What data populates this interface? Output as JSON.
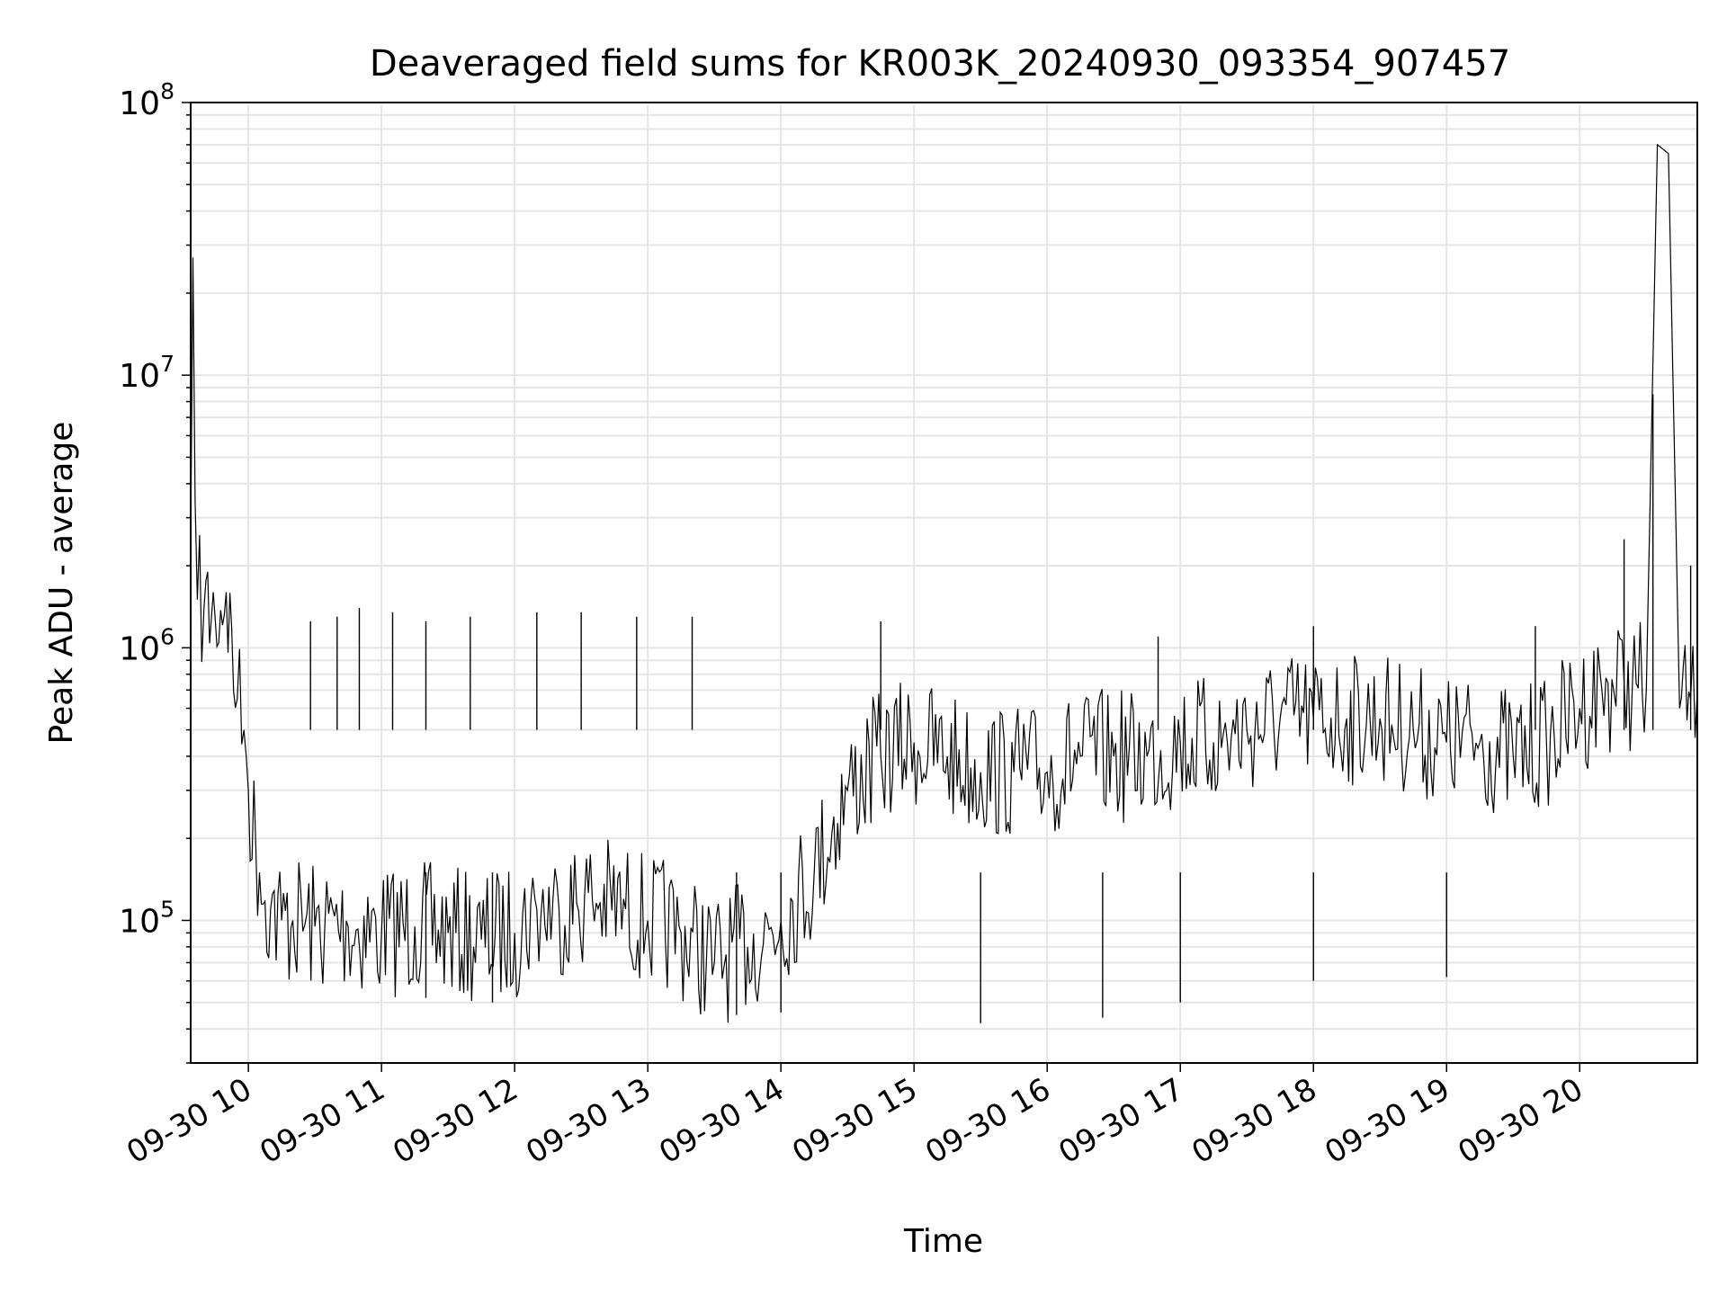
{
  "chart_data": {
    "type": "line",
    "title": "Deaveraged field sums for KR003K_20240930_093354_907457",
    "xlabel": "Time",
    "ylabel": "Peak ADU - average",
    "yscale": "log",
    "ylim": [
      30000,
      100000000
    ],
    "xlim": [
      "2024-09-30 09:34",
      "2024-09-30 20:53"
    ],
    "grid": true,
    "legend": "none",
    "line_color": "#000000",
    "grid_color": "#e5e5e5",
    "x_ticks": [
      {
        "t": "2024-09-30 10:00",
        "label": "09-30 10"
      },
      {
        "t": "2024-09-30 11:00",
        "label": "09-30 11"
      },
      {
        "t": "2024-09-30 12:00",
        "label": "09-30 12"
      },
      {
        "t": "2024-09-30 13:00",
        "label": "09-30 13"
      },
      {
        "t": "2024-09-30 14:00",
        "label": "09-30 14"
      },
      {
        "t": "2024-09-30 15:00",
        "label": "09-30 15"
      },
      {
        "t": "2024-09-30 16:00",
        "label": "09-30 16"
      },
      {
        "t": "2024-09-30 17:00",
        "label": "09-30 17"
      },
      {
        "t": "2024-09-30 18:00",
        "label": "09-30 18"
      },
      {
        "t": "2024-09-30 19:00",
        "label": "09-30 19"
      },
      {
        "t": "2024-09-30 20:00",
        "label": "09-30 20"
      }
    ],
    "y_ticks": [
      {
        "value": 100000,
        "base": "10",
        "exp": "5"
      },
      {
        "value": 1000000,
        "base": "10",
        "exp": "6"
      },
      {
        "value": 10000000,
        "base": "10",
        "exp": "7"
      },
      {
        "value": 100000000,
        "base": "10",
        "exp": "8"
      }
    ],
    "series": [
      {
        "x": [
          "2024-09-30 09:34",
          "2024-09-30 09:35",
          "2024-09-30 09:36",
          "2024-09-30 09:37",
          "2024-09-30 09:40",
          "2024-09-30 09:45",
          "2024-09-30 09:50",
          "2024-09-30 09:55",
          "2024-09-30 09:58",
          "2024-09-30 10:00",
          "2024-09-30 10:05",
          "2024-09-30 10:10",
          "2024-09-30 10:15",
          "2024-09-30 10:20",
          "2024-09-30 10:30",
          "2024-09-30 10:45",
          "2024-09-30 11:00",
          "2024-09-30 11:15",
          "2024-09-30 11:30",
          "2024-09-30 11:45",
          "2024-09-30 12:00",
          "2024-09-30 12:10",
          "2024-09-30 12:20",
          "2024-09-30 12:35",
          "2024-09-30 12:50",
          "2024-09-30 13:00",
          "2024-09-30 13:15",
          "2024-09-30 13:30",
          "2024-09-30 13:45",
          "2024-09-30 14:00",
          "2024-09-30 14:15",
          "2024-09-30 14:30",
          "2024-09-30 14:45",
          "2024-09-30 15:00",
          "2024-09-30 15:15",
          "2024-09-30 15:30",
          "2024-09-30 15:45",
          "2024-09-30 16:00",
          "2024-09-30 16:15",
          "2024-09-30 16:30",
          "2024-09-30 16:45",
          "2024-09-30 17:00",
          "2024-09-30 17:15",
          "2024-09-30 17:30",
          "2024-09-30 17:45",
          "2024-09-30 18:00",
          "2024-09-30 18:15",
          "2024-09-30 18:30",
          "2024-09-30 18:45",
          "2024-09-30 19:00",
          "2024-09-30 19:15",
          "2024-09-30 19:30",
          "2024-09-30 19:45",
          "2024-09-30 20:00",
          "2024-09-30 20:10",
          "2024-09-30 20:20",
          "2024-09-30 20:30",
          "2024-09-30 20:35",
          "2024-09-30 20:40",
          "2024-09-30 20:45",
          "2024-09-30 20:50",
          "2024-09-30 20:53"
        ],
        "y": [
          2500000,
          27000000,
          3500000,
          1500000,
          1400000,
          1300000,
          1600000,
          650000,
          500000,
          300000,
          150000,
          110000,
          100000,
          100000,
          95000,
          95000,
          90000,
          95000,
          90000,
          85000,
          90000,
          110000,
          110000,
          120000,
          110000,
          100000,
          90000,
          70000,
          80000,
          100000,
          150000,
          300000,
          400000,
          450000,
          400000,
          350000,
          350000,
          350000,
          400000,
          400000,
          400000,
          450000,
          450000,
          500000,
          550000,
          550000,
          550000,
          550000,
          500000,
          450000,
          450000,
          400000,
          450000,
          600000,
          700000,
          750000,
          700000,
          70000000,
          65000000,
          600000,
          650000,
          700000
        ]
      }
    ],
    "spikes": [
      {
        "t": "2024-09-30 10:28",
        "y": 1250000
      },
      {
        "t": "2024-09-30 10:40",
        "y": 1300000
      },
      {
        "t": "2024-09-30 10:50",
        "y": 1400000
      },
      {
        "t": "2024-09-30 11:05",
        "y": 1350000
      },
      {
        "t": "2024-09-30 11:20",
        "y": 1250000
      },
      {
        "t": "2024-09-30 11:40",
        "y": 1300000
      },
      {
        "t": "2024-09-30 12:10",
        "y": 1350000
      },
      {
        "t": "2024-09-30 12:30",
        "y": 1350000
      },
      {
        "t": "2024-09-30 12:55",
        "y": 1300000
      },
      {
        "t": "2024-09-30 13:20",
        "y": 1300000
      },
      {
        "t": "2024-09-30 14:45",
        "y": 1250000
      },
      {
        "t": "2024-09-30 16:50",
        "y": 1100000
      },
      {
        "t": "2024-09-30 18:00",
        "y": 1200000
      },
      {
        "t": "2024-09-30 19:40",
        "y": 1200000
      },
      {
        "t": "2024-09-30 20:20",
        "y": 2500000
      },
      {
        "t": "2024-09-30 20:33",
        "y": 8500000
      },
      {
        "t": "2024-09-30 20:50",
        "y": 2000000
      }
    ],
    "dips": [
      {
        "t": "2024-09-30 11:20",
        "y": 52000
      },
      {
        "t": "2024-09-30 11:50",
        "y": 50000
      },
      {
        "t": "2024-09-30 13:40",
        "y": 45000
      },
      {
        "t": "2024-09-30 14:00",
        "y": 46000
      },
      {
        "t": "2024-09-30 15:30",
        "y": 42000
      },
      {
        "t": "2024-09-30 16:25",
        "y": 44000
      },
      {
        "t": "2024-09-30 17:00",
        "y": 50000
      },
      {
        "t": "2024-09-30 18:00",
        "y": 60000
      },
      {
        "t": "2024-09-30 19:00",
        "y": 62000
      }
    ]
  }
}
